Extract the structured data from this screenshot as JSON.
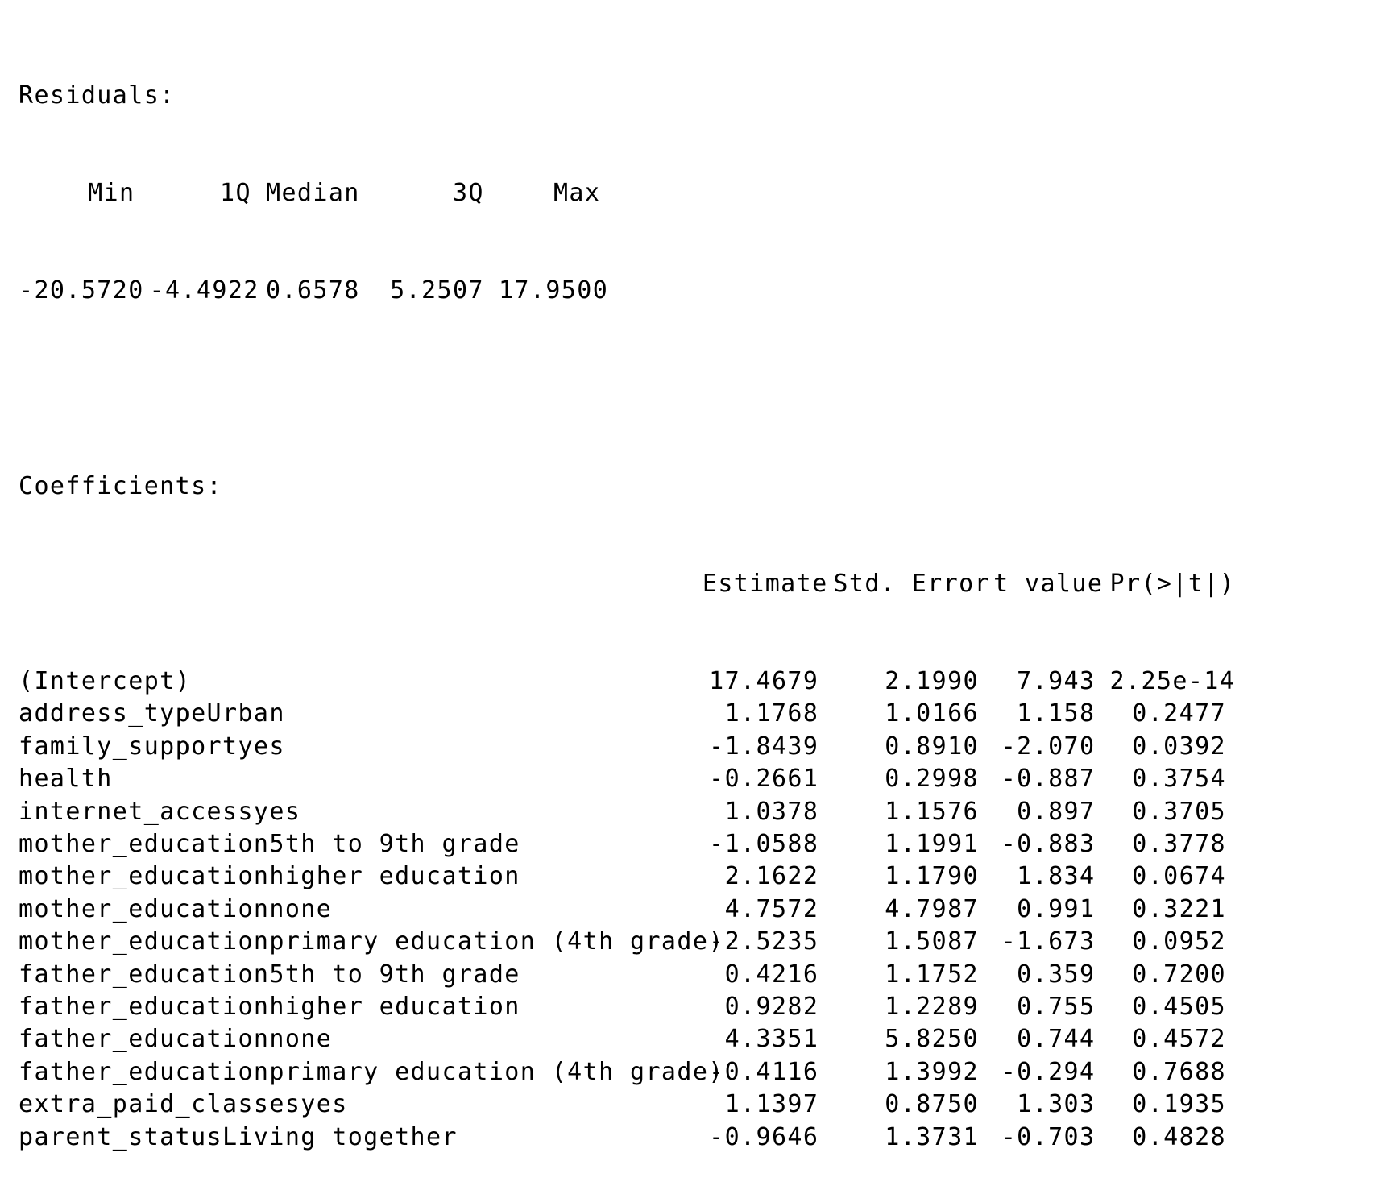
{
  "residuals": {
    "heading": "Residuals:",
    "headers": [
      "Min",
      "1Q",
      "Median",
      "3Q",
      "Max"
    ],
    "values": [
      "-20.5720",
      "-4.4922",
      "0.6578",
      "5.2507",
      "17.9500"
    ]
  },
  "coefficients": {
    "heading": "Coefficients:",
    "headers": [
      "Estimate",
      "Std. Error",
      "t value",
      "Pr(>|t|)"
    ],
    "rows": [
      {
        "term": "(Intercept)",
        "estimate": "17.4679",
        "std_error": "2.1990",
        "t_value": "7.943",
        "p_value": "2.25e-14"
      },
      {
        "term": "address_typeUrban",
        "estimate": "1.1768",
        "std_error": "1.0166",
        "t_value": "1.158",
        "p_value": "0.2477"
      },
      {
        "term": "family_supportyes",
        "estimate": "-1.8439",
        "std_error": "0.8910",
        "t_value": "-2.070",
        "p_value": "0.0392"
      },
      {
        "term": "health",
        "estimate": "-0.2661",
        "std_error": "0.2998",
        "t_value": "-0.887",
        "p_value": "0.3754"
      },
      {
        "term": "internet_accessyes",
        "estimate": "1.0378",
        "std_error": "1.1576",
        "t_value": "0.897",
        "p_value": "0.3705"
      },
      {
        "term": "mother_education5th to 9th grade",
        "estimate": "-1.0588",
        "std_error": "1.1991",
        "t_value": "-0.883",
        "p_value": "0.3778"
      },
      {
        "term": "mother_educationhigher education",
        "estimate": "2.1622",
        "std_error": "1.1790",
        "t_value": "1.834",
        "p_value": "0.0674"
      },
      {
        "term": "mother_educationnone",
        "estimate": "4.7572",
        "std_error": "4.7987",
        "t_value": "0.991",
        "p_value": "0.3221"
      },
      {
        "term": "mother_educationprimary education (4th grade)",
        "estimate": "-2.5235",
        "std_error": "1.5087",
        "t_value": "-1.673",
        "p_value": "0.0952"
      },
      {
        "term": "father_education5th to 9th grade",
        "estimate": "0.4216",
        "std_error": "1.1752",
        "t_value": "0.359",
        "p_value": "0.7200"
      },
      {
        "term": "father_educationhigher education",
        "estimate": "0.9282",
        "std_error": "1.2289",
        "t_value": "0.755",
        "p_value": "0.4505"
      },
      {
        "term": "father_educationnone",
        "estimate": "4.3351",
        "std_error": "5.8250",
        "t_value": "0.744",
        "p_value": "0.4572"
      },
      {
        "term": "father_educationprimary education (4th grade)",
        "estimate": "-0.4116",
        "std_error": "1.3992",
        "t_value": "-0.294",
        "p_value": "0.7688"
      },
      {
        "term": "extra_paid_classesyes",
        "estimate": "1.1397",
        "std_error": "0.8750",
        "t_value": "1.303",
        "p_value": "0.1935"
      },
      {
        "term": "parent_statusLiving together",
        "estimate": "-0.9646",
        "std_error": "1.3731",
        "t_value": "-0.703",
        "p_value": "0.4828"
      }
    ]
  }
}
